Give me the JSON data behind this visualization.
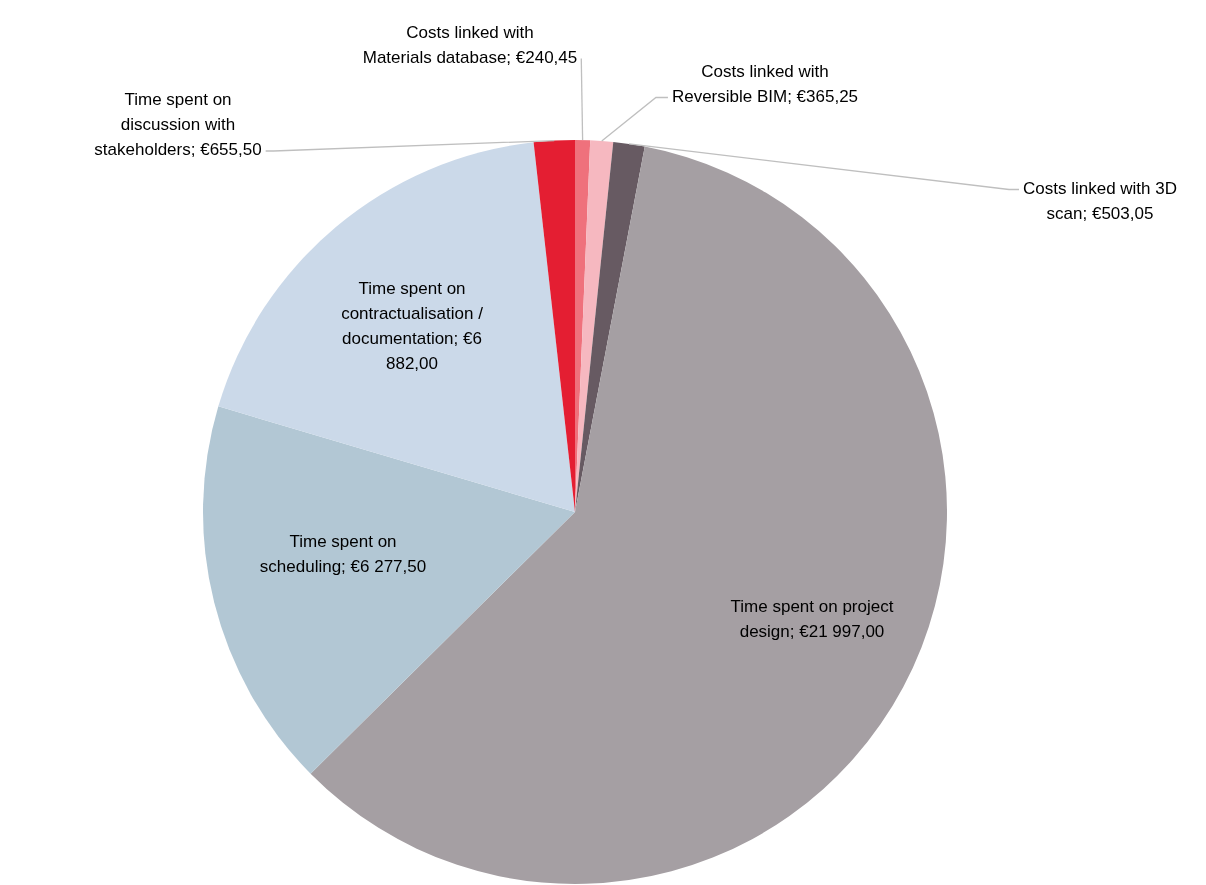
{
  "chart_data": {
    "type": "pie",
    "categories": [
      "Costs linked with Materials database",
      "Costs linked with Reversible BIM",
      "Costs linked with 3D scan",
      "Time spent on project design",
      "Time spent on scheduling",
      "Time spent on contractualisation / documentation",
      "Time spent on discussion with stakeholders"
    ],
    "values": [
      240.45,
      365.25,
      503.05,
      21997.0,
      6277.5,
      6882.0,
      655.5
    ],
    "value_labels": [
      "€240,45",
      "€365,25",
      "€503,05",
      "€21 997,00",
      "€6 277,50",
      "€6 882,00",
      "€655,50"
    ],
    "colors": [
      "#ef717c",
      "#f6b8c0",
      "#675a62",
      "#a59fa3",
      "#b2c7d4",
      "#cbd9e9",
      "#e41e32"
    ]
  }
}
